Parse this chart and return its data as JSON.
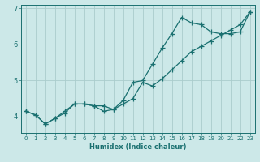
{
  "title": "",
  "xlabel": "Humidex (Indice chaleur)",
  "bg_color": "#cce8e8",
  "line_color": "#1a7070",
  "grid_color": "#aacccc",
  "line1_x": [
    0,
    1,
    2,
    3,
    4,
    5,
    6,
    7,
    8,
    9,
    10,
    11,
    12,
    13,
    14,
    15,
    16,
    17,
    18,
    19,
    20,
    21,
    22,
    23
  ],
  "line1_y": [
    4.15,
    4.05,
    3.8,
    3.95,
    4.1,
    4.35,
    4.35,
    4.3,
    4.15,
    4.2,
    4.45,
    4.95,
    5.0,
    5.45,
    5.9,
    6.3,
    6.75,
    6.6,
    6.55,
    6.35,
    6.3,
    6.3,
    6.35,
    6.9
  ],
  "line2_x": [
    0,
    1,
    2,
    3,
    4,
    5,
    6,
    7,
    8,
    9,
    10,
    11,
    12,
    13,
    14,
    15,
    16,
    17,
    18,
    19,
    20,
    21,
    22,
    23
  ],
  "line2_y": [
    4.15,
    4.05,
    3.8,
    3.95,
    4.15,
    4.35,
    4.35,
    4.3,
    4.3,
    4.2,
    4.35,
    4.5,
    4.95,
    4.85,
    5.05,
    5.3,
    5.55,
    5.8,
    5.95,
    6.1,
    6.25,
    6.4,
    6.55,
    6.9
  ],
  "xlim": [
    -0.5,
    23.5
  ],
  "ylim": [
    3.55,
    7.1
  ],
  "ytick_positions": [
    4,
    5,
    6,
    7
  ],
  "ytick_labels": [
    "4",
    "5",
    "6",
    "7"
  ],
  "xtick_positions": [
    0,
    1,
    2,
    3,
    4,
    5,
    6,
    7,
    8,
    9,
    10,
    11,
    12,
    13,
    14,
    15,
    16,
    17,
    18,
    19,
    20,
    21,
    22,
    23
  ],
  "marker": "+",
  "markersize": 4,
  "linewidth": 0.9
}
